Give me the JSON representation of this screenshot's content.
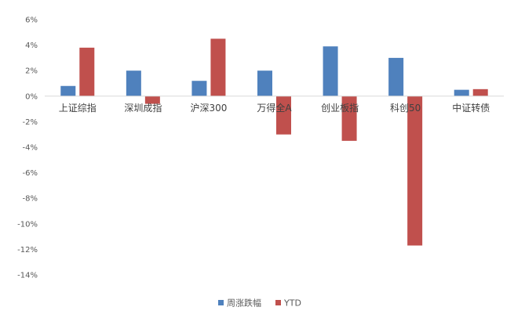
{
  "chart_data": {
    "type": "bar",
    "title": "",
    "xlabel": "",
    "ylabel": "",
    "categories": [
      "上证综指",
      "深圳成指",
      "沪深300",
      "万得全A",
      "创业板指",
      "科创50",
      "中证转债"
    ],
    "series": [
      {
        "name": "周涨跌幅",
        "color": "#4F81BD",
        "values": [
          0.8,
          2.0,
          1.2,
          2.0,
          3.9,
          3.0,
          0.5
        ]
      },
      {
        "name": "YTD",
        "color": "#C0504D",
        "values": [
          3.8,
          -0.6,
          4.5,
          -3.0,
          -3.5,
          -11.7,
          0.55
        ]
      }
    ],
    "ylim": [
      -14,
      6
    ],
    "yticks": [
      "6%",
      "4%",
      "2%",
      "0%",
      "-2%",
      "-4%",
      "-6%",
      "-8%",
      "-10%",
      "-12%",
      "-14%"
    ],
    "ytick_values": [
      6,
      4,
      2,
      0,
      -2,
      -4,
      -6,
      -8,
      -10,
      -12,
      -14
    ],
    "unit": "%",
    "grid": false,
    "legend_position": "bottom-center"
  }
}
